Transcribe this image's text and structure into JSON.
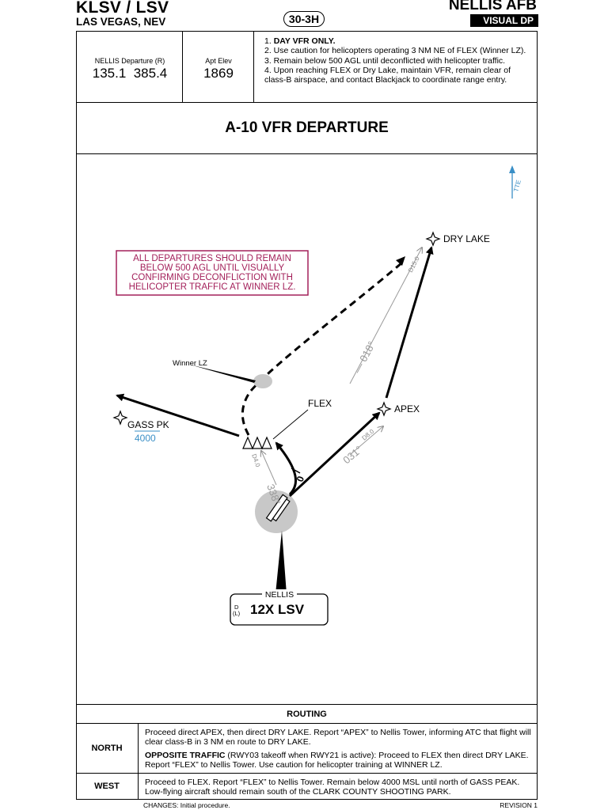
{
  "header": {
    "ident": "KLSV / LSV",
    "city": "LAS VEGAS, NEV",
    "procedure_number": "30-3H",
    "airport": "NELLIS AFB",
    "chart_type": "VISUAL DP"
  },
  "frequencies": {
    "departure_label": "NELLIS Departure (R)",
    "departure_freqs": "135.1  385.4",
    "elevation_label": "Apt Elev",
    "elevation": "1869"
  },
  "notes": {
    "n1_num": "1. ",
    "n1_text": "DAY VFR ONLY.",
    "n2": "2. Use caution for helicopters operating 3 NM NE of FLEX (Winner LZ).",
    "n3": "3. Remain below 500 AGL until deconflicted with helicopter traffic.",
    "n4": "4. Upon reaching FLEX or Dry Lake, maintain VFR, remain clear of class-B airspace, and contact Blackjack to coordinate range entry."
  },
  "title": "A-10 VFR DEPARTURE",
  "plan": {
    "north_label": "TTE",
    "dry_lake": "DRY LAKE",
    "apex": "APEX",
    "flex": "FLEX",
    "gass_pk": "GASS PK",
    "gass_alt": "4000",
    "winner_lz": "Winner LZ",
    "caution_box": [
      "ALL DEPARTURES SHOULD REMAIN",
      "BELOW 500 AGL UNTIL VISUALLY",
      "CONFIRMING DECONFLICTION WITH",
      "HELICOPTER TRAFFIC AT WINNER LZ."
    ],
    "course_018": "018°",
    "course_031": "031°",
    "course_338": "338°",
    "dist_d150": "D15.0",
    "dist_d80": "D8.0",
    "dist_d40": "D4.0",
    "runway_label": "0",
    "navaid_name": "NELLIS",
    "navaid_class": "D",
    "navaid_class2": "(L)",
    "navaid_ident": "12X LSV",
    "colors": {
      "magenta": "#a3205a",
      "blue": "#3a8fc6",
      "grey": "#9a9a9a",
      "airport_circle": "#c8c8c8"
    }
  },
  "routing": {
    "header": "ROUTING",
    "north_name": "NORTH",
    "north_p1": "Proceed direct APEX, then direct DRY LAKE. Report “APEX” to Nellis Tower, informing ATC that flight will clear class-B in 3 NM en route to DRY LAKE.",
    "north_p2_bold": "OPPOSITE TRAFFIC",
    "north_p2": " (RWY03 takeoff when RWY21 is active): Proceed to FLEX then direct DRY LAKE. Report “FLEX” to Nellis Tower. Use caution for helicopter training at WINNER LZ.",
    "west_name": "WEST",
    "west_p1": "Proceed to FLEX. Report “FLEX” to Nellis Tower. Remain below 4000 MSL until north of GASS PEAK. Low-flying aircraft should remain south of the CLARK COUNTY SHOOTING PARK."
  },
  "footer": {
    "changes": "CHANGES: Initial procedure.",
    "revision": "REVISION 1"
  }
}
